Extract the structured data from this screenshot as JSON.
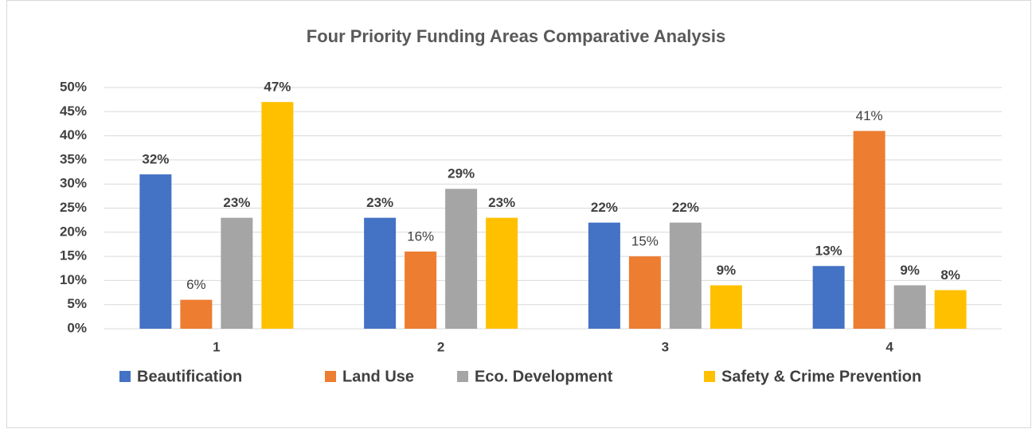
{
  "chart_data": {
    "type": "bar",
    "title": "Four Priority Funding Areas Comparative Analysis",
    "categories": [
      "1",
      "2",
      "3",
      "4"
    ],
    "series": [
      {
        "name": "Beautification",
        "color": "#4472c4",
        "values": [
          32,
          23,
          22,
          13
        ],
        "value_labels": [
          "32%",
          "23%",
          "22%",
          "13%"
        ]
      },
      {
        "name": "Land Use",
        "color": "#ed7d31",
        "values": [
          6,
          16,
          15,
          41
        ],
        "value_labels": [
          "6%",
          "16%",
          "15%",
          "41%"
        ]
      },
      {
        "name": "Eco. Development",
        "color": "#a5a5a5",
        "values": [
          23,
          29,
          22,
          9
        ],
        "value_labels": [
          "23%",
          "29%",
          "22%",
          "9%"
        ]
      },
      {
        "name": "Safety & Crime Prevention",
        "color": "#ffc000",
        "values": [
          47,
          23,
          9,
          8
        ],
        "value_labels": [
          "47%",
          "23%",
          "9%",
          "8%"
        ]
      }
    ],
    "ylim": [
      0,
      50
    ],
    "yticks": [
      {
        "value": 0,
        "label": "0%"
      },
      {
        "value": 5,
        "label": "5%"
      },
      {
        "value": 10,
        "label": "10%"
      },
      {
        "value": 15,
        "label": "15%"
      },
      {
        "value": 20,
        "label": "20%"
      },
      {
        "value": 25,
        "label": "25%"
      },
      {
        "value": 30,
        "label": "30%"
      },
      {
        "value": 35,
        "label": "35%"
      },
      {
        "value": 40,
        "label": "40%"
      },
      {
        "value": 45,
        "label": "45%"
      },
      {
        "value": 50,
        "label": "50%"
      }
    ],
    "grid": true,
    "legend": "bottom"
  }
}
